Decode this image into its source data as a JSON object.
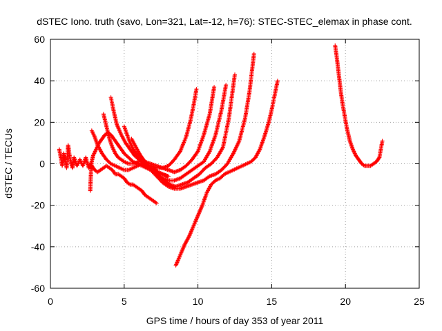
{
  "chart_data": {
    "type": "scatter",
    "title": "dSTEC Iono. truth (savo, Lon=321, Lat=-12, h=76): STEC-STEC_elemax in phase cont.",
    "xlabel": "GPS time / hours of day 353 of year 2011",
    "ylabel": "dSTEC  / TECUs",
    "xlim": [
      0,
      25
    ],
    "ylim": [
      -60,
      60
    ],
    "xticks": [
      0,
      5,
      10,
      15,
      20,
      25
    ],
    "yticks": [
      -60,
      -40,
      -20,
      0,
      20,
      40,
      60
    ],
    "grid": true,
    "marker": "+",
    "color": "#ff0000",
    "series": [
      {
        "x": [
          0.6,
          0.7,
          0.8,
          0.9,
          1.0,
          1.1,
          1.2,
          1.3,
          1.4,
          1.5,
          1.6,
          1.8,
          2.0,
          2.2,
          2.4,
          2.6,
          2.8
        ],
        "y": [
          7,
          3,
          -1,
          5,
          2,
          -2,
          9,
          4,
          0,
          -2,
          3,
          -1,
          2,
          -1,
          3,
          -2,
          1
        ]
      },
      {
        "x": [
          2.8,
          3.0,
          3.2,
          3.4,
          3.6,
          3.8,
          4.0,
          4.2,
          4.4,
          4.6,
          4.8,
          5.0,
          5.2,
          5.4,
          5.6,
          5.8,
          6.0,
          6.2,
          6.4,
          6.6,
          6.8,
          7.0,
          7.2
        ],
        "y": [
          -1,
          -3,
          -4,
          -3,
          -2,
          -1,
          -2,
          -3,
          -5,
          -5,
          -6,
          -7,
          -9,
          -10,
          -10,
          -11,
          -12,
          -13,
          -15,
          -16,
          -17,
          -18,
          -19
        ]
      },
      {
        "x": [
          2.7,
          2.72,
          2.75,
          2.8,
          2.9,
          3.1,
          3.3,
          3.5,
          3.7,
          3.9,
          4.1,
          4.3,
          4.5,
          4.7,
          5.0,
          5.3,
          5.6,
          5.9,
          6.2,
          6.5,
          6.8,
          7.0,
          7.3,
          7.6,
          7.9
        ],
        "y": [
          -13,
          -9,
          -4,
          1,
          4,
          7,
          10,
          12,
          14,
          15,
          14,
          12,
          10,
          8,
          5,
          3,
          1,
          0,
          -1,
          -2,
          -3,
          -3,
          -4,
          -5,
          -6
        ]
      },
      {
        "x": [
          2.8,
          3.0,
          3.2,
          3.5,
          3.8,
          4.1,
          4.4,
          4.7,
          5.0,
          5.3,
          5.6,
          5.9,
          6.2,
          6.5,
          6.8,
          7.1,
          7.3,
          7.6,
          8.0
        ],
        "y": [
          16,
          13,
          9,
          5,
          2,
          0,
          -1,
          -2,
          -3,
          -3,
          -2,
          -1,
          0,
          -1,
          -2,
          -3,
          -4,
          -5,
          -6
        ]
      },
      {
        "x": [
          3.6,
          3.8,
          4.0,
          4.2,
          4.4,
          4.6,
          4.8,
          5.0,
          5.3,
          5.6,
          6.0,
          6.4,
          6.8,
          7.2,
          7.6,
          8.0,
          8.4,
          8.8,
          9.2,
          9.5,
          9.7,
          9.9
        ],
        "y": [
          24,
          18,
          12,
          8,
          5,
          3,
          2,
          1,
          0,
          0,
          1,
          1,
          0,
          -1,
          -2,
          -1,
          2,
          6,
          13,
          21,
          28,
          36
        ]
      },
      {
        "x": [
          4.1,
          4.3,
          4.5,
          4.8,
          5.1,
          5.4,
          5.7,
          6.0,
          6.4,
          6.8,
          7.2,
          7.6,
          8.0,
          8.4,
          8.8,
          9.2,
          9.6,
          10.0,
          10.4,
          10.8,
          11.1
        ],
        "y": [
          32,
          25,
          19,
          14,
          10,
          7,
          4,
          2,
          0,
          -1,
          -2,
          -2,
          -3,
          -4,
          -3,
          -1,
          2,
          6,
          14,
          24,
          37
        ]
      },
      {
        "x": [
          5.0,
          5.3,
          5.6,
          6.0,
          6.4,
          6.8,
          7.2,
          7.6,
          8.0,
          8.4,
          8.8,
          9.2,
          9.6,
          10.0,
          10.4,
          10.8,
          11.2,
          11.6,
          11.9
        ],
        "y": [
          18,
          12,
          7,
          3,
          0,
          -3,
          -5,
          -7,
          -8,
          -8,
          -7,
          -5,
          -3,
          -1,
          1,
          6,
          14,
          26,
          38
        ]
      },
      {
        "x": [
          5.5,
          5.8,
          6.1,
          6.5,
          6.9,
          7.3,
          7.7,
          8.1,
          8.5,
          8.9,
          9.3,
          9.7,
          10.1,
          10.5,
          10.9,
          11.3,
          11.7,
          12.1,
          12.5
        ],
        "y": [
          12,
          8,
          4,
          0,
          -3,
          -6,
          -8,
          -10,
          -11,
          -10,
          -9,
          -7,
          -5,
          -2,
          0,
          3,
          8,
          22,
          43
        ]
      },
      {
        "x": [
          6.0,
          6.4,
          6.8,
          7.2,
          7.6,
          8.0,
          8.4,
          8.8,
          9.2,
          9.6,
          10.0,
          10.4,
          10.8,
          11.2,
          11.6,
          12.0,
          12.4,
          12.8,
          13.2,
          13.5,
          13.8
        ],
        "y": [
          5,
          1,
          -3,
          -6,
          -9,
          -11,
          -12,
          -12,
          -11,
          -10,
          -9,
          -8,
          -6,
          -5,
          -3,
          0,
          5,
          11,
          22,
          35,
          53
        ]
      },
      {
        "x": [
          8.5,
          8.8,
          9.1,
          9.4,
          9.7,
          10.0,
          10.3,
          10.6,
          10.9,
          11.2,
          11.5,
          11.8,
          12.1,
          12.4,
          12.7,
          13.0,
          13.3,
          13.6,
          13.9,
          14.2,
          14.5,
          14.8,
          15.0,
          15.2,
          15.4
        ],
        "y": [
          -49,
          -44,
          -39,
          -35,
          -30,
          -25,
          -20,
          -14,
          -10,
          -8,
          -7,
          -5,
          -4,
          -3,
          -2,
          -1,
          0,
          1,
          3,
          7,
          13,
          20,
          26,
          33,
          40
        ]
      },
      {
        "x": [
          19.3,
          19.4,
          19.5,
          19.6,
          19.7,
          19.8,
          19.9,
          20.0,
          20.1,
          20.2,
          20.3,
          20.5,
          20.7,
          20.9,
          21.1,
          21.3,
          21.5,
          21.7,
          21.9,
          22.1,
          22.3,
          22.4,
          22.5
        ],
        "y": [
          57,
          52,
          46,
          40,
          34,
          29,
          25,
          21,
          17,
          14,
          11,
          7,
          4,
          2,
          0,
          -1,
          -1,
          -1,
          0,
          1,
          3,
          7,
          11
        ]
      }
    ]
  }
}
